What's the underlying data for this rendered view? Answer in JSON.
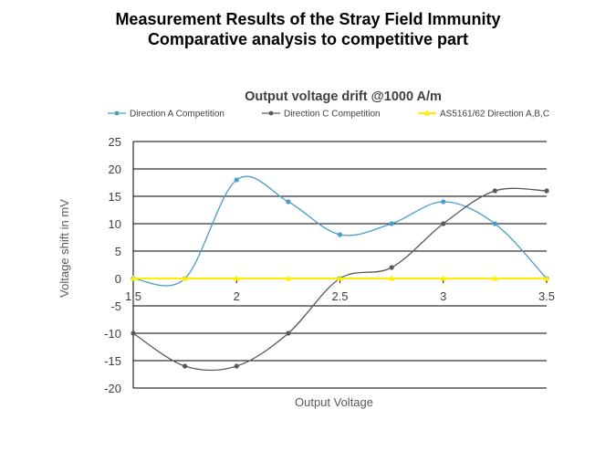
{
  "slide": {
    "title_line1": "Measurement Results of the Stray Field Immunity",
    "title_line2": "Comparative analysis to competitive part"
  },
  "chart_data": {
    "type": "line",
    "title": "Output voltage drift @1000 A/m",
    "xlabel": "Output Voltage",
    "ylabel": "Voltage shift in mV",
    "xlim": [
      1.5,
      3.5
    ],
    "ylim": [
      -20,
      25
    ],
    "x_ticks": [
      "1.5",
      "2",
      "2.5",
      "3",
      "3.5"
    ],
    "y_ticks": [
      "25",
      "20",
      "15",
      "10",
      "5",
      "0",
      "-5",
      "-10",
      "-15",
      "-20"
    ],
    "grid": true,
    "legend_position": "top",
    "x": [
      1.5,
      1.75,
      2.0,
      2.25,
      2.5,
      2.75,
      3.0,
      3.25,
      3.5
    ],
    "series": [
      {
        "name": "Direction A Competition",
        "color": "#4a9cc9",
        "marker": "circle",
        "values": [
          0,
          0,
          18,
          14,
          8,
          10,
          14,
          10,
          0
        ]
      },
      {
        "name": "Direction C Competition",
        "color": "#595959",
        "marker": "circle",
        "values": [
          -10,
          -16,
          -16,
          -10,
          0,
          2,
          10,
          16,
          16
        ]
      },
      {
        "name": "AS5161/62 Direction A,B,C",
        "color": "#ffee00",
        "marker": "triangle",
        "values": [
          0,
          0,
          0,
          0,
          0,
          0,
          0,
          0,
          0
        ]
      }
    ]
  }
}
